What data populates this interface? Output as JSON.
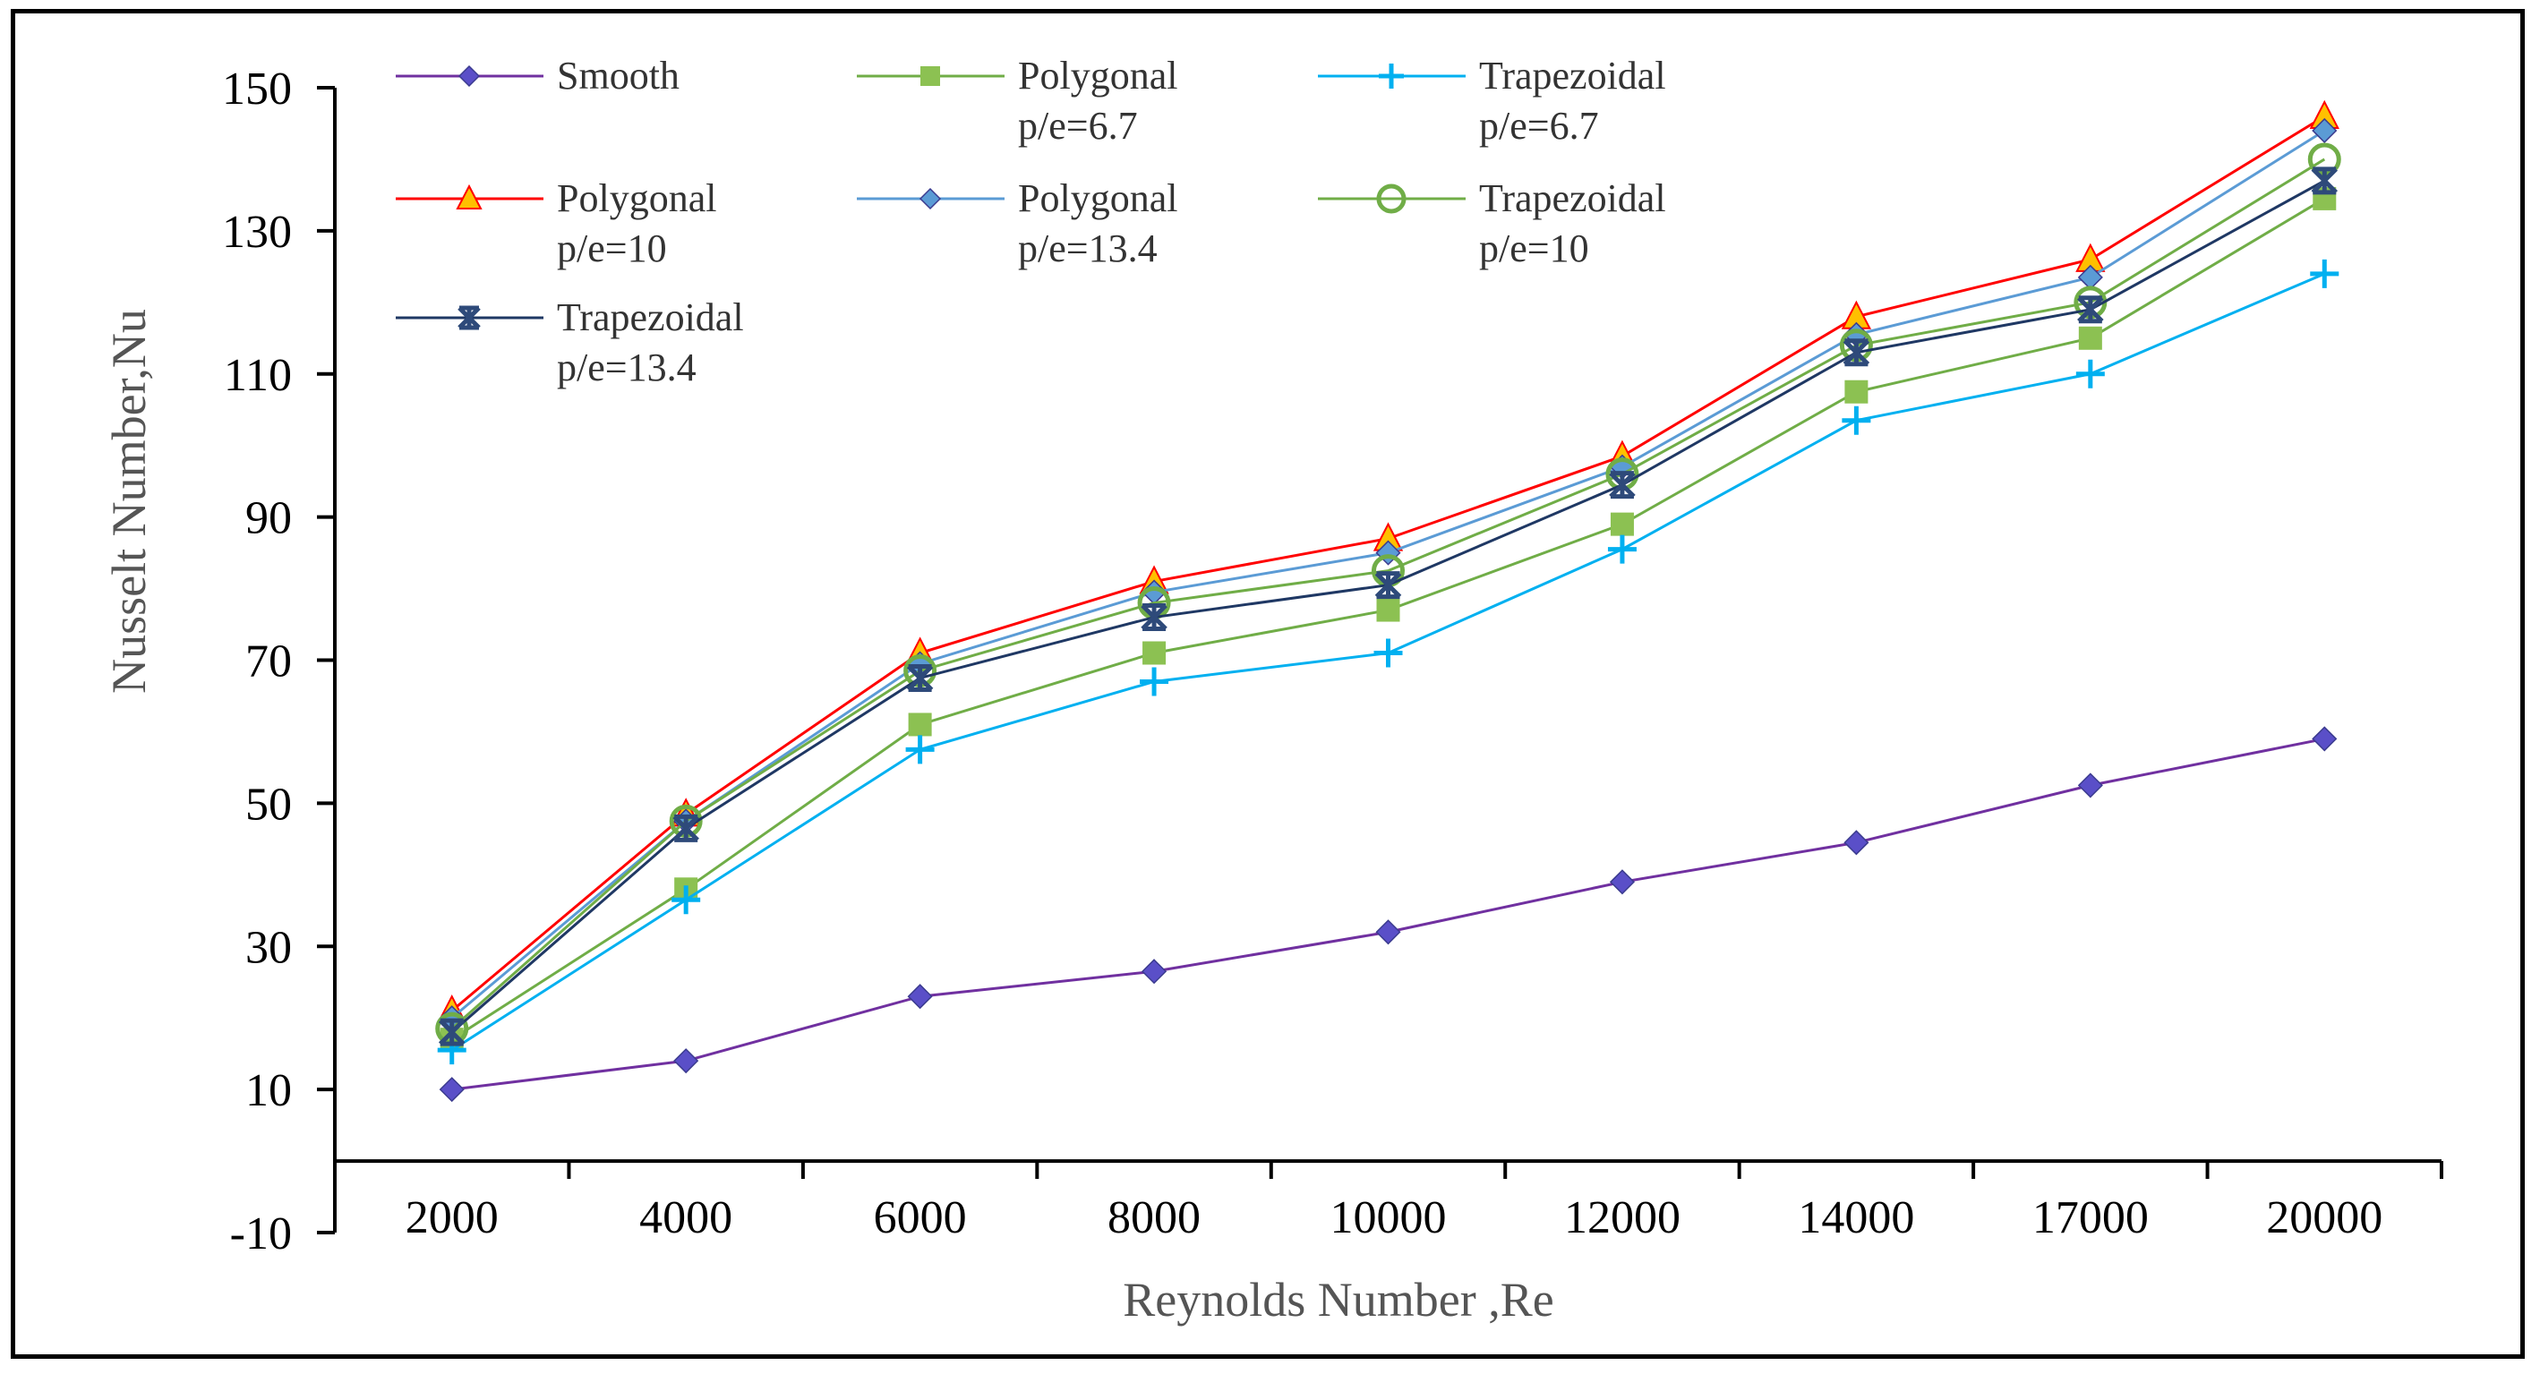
{
  "chart_data": {
    "type": "line",
    "title": "",
    "xlabel": "Reynolds Number ,Re",
    "ylabel": "Nusselt Number,Nu",
    "categories": [
      "2000",
      "4000",
      "6000",
      "8000",
      "10000",
      "12000",
      "14000",
      "17000",
      "20000"
    ],
    "ylim": [
      -10,
      150
    ],
    "yticks": [
      "-10",
      "10",
      "30",
      "50",
      "70",
      "90",
      "110",
      "130",
      "150"
    ],
    "grid": false,
    "legend_position": "top-left inside",
    "series": [
      {
        "name": "Smooth",
        "name_line2": "",
        "color": "#7030A0",
        "marker": "diamond",
        "marker_color": "#5A4FC8",
        "values": [
          10,
          14,
          23,
          26.5,
          32,
          39,
          44.5,
          52.5,
          59
        ]
      },
      {
        "name": "Polygonal",
        "name_line2": "p/e=6.7",
        "color": "#70AD47",
        "marker": "square",
        "marker_color": "#8CC152",
        "values": [
          17,
          38,
          61,
          71,
          77,
          89,
          107.5,
          115,
          134.5
        ]
      },
      {
        "name": "Trapezoidal",
        "name_line2": "p/e=6.7",
        "color": "#00B0F0",
        "marker": "plus",
        "marker_color": "#00B0F0",
        "values": [
          15.5,
          36.5,
          57.5,
          67,
          71,
          85.5,
          103.5,
          110,
          124
        ]
      },
      {
        "name": "Polygonal",
        "name_line2": "p/e=10",
        "color": "#FF0000",
        "marker": "triangle",
        "marker_color": "#FFC000",
        "values": [
          21,
          48.5,
          71,
          81,
          87,
          98.5,
          118,
          126,
          146
        ]
      },
      {
        "name": "Polygonal",
        "name_line2": "p/e=13.4",
        "color": "#5B9BD5",
        "marker": "diamond",
        "marker_color": "#5B9BD5",
        "values": [
          20,
          47.5,
          69.5,
          79.5,
          85,
          97,
          115.5,
          123.5,
          144
        ]
      },
      {
        "name": "Trapezoidal",
        "name_line2": "p/e=10",
        "color": "#70AD47",
        "marker": "circle",
        "marker_color": "#70AD47",
        "values": [
          18.5,
          47.5,
          68.5,
          78,
          82.5,
          96,
          114,
          120,
          140
        ]
      },
      {
        "name": "Trapezoidal",
        "name_line2": "p/e=13.4",
        "color": "#1F3864",
        "marker": "star",
        "marker_color": "#2E4A7A",
        "values": [
          18,
          46.5,
          67.5,
          76,
          80.5,
          94.5,
          113,
          119,
          137
        ]
      }
    ]
  }
}
